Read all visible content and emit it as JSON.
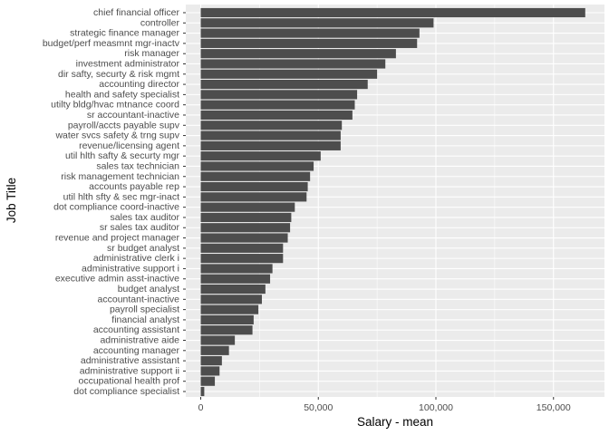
{
  "chart_data": {
    "type": "bar",
    "orientation": "horizontal",
    "xlabel": "Salary - mean",
    "ylabel": "Job Title",
    "xlim": [
      0,
      170000
    ],
    "x_ticks": [
      0,
      50000,
      100000,
      150000
    ],
    "x_tick_labels": [
      "0",
      "50,000",
      "100,000",
      "150,000"
    ],
    "grid": true,
    "colors": {
      "panel": "#ebebeb",
      "grid": "#ffffff",
      "bar": "#4d4d4d",
      "tick_text": "#4d4d4d"
    },
    "categories": [
      "chief financial officer",
      "controller",
      "strategic finance manager",
      "budget/perf measmnt mgr-inactv",
      "risk manager",
      "investment administrator",
      "dir safty, securty & risk mgmt",
      "accounting director",
      "health and safety specialist",
      "utilty bldg/hvac mtnance coord",
      "sr accountant-inactive",
      "payroll/accts payable supv",
      "water svcs safety & trng supv",
      "revenue/licensing agent",
      "util hlth safty & securty mgr",
      "sales tax technician",
      "risk management technician",
      "accounts payable rep",
      "util hlth sfty & sec mgr-inact",
      "dot compliance coord-inactive",
      "sales tax auditor",
      "sr sales tax auditor",
      "revenue and project manager",
      "sr budget analyst",
      "administrative clerk i",
      "administrative support i",
      "executive admin asst-inactive",
      "budget analyst",
      "accountant-inactive",
      "payroll specialist",
      "financial analyst",
      "accounting assistant",
      "administrative aide",
      "accounting manager",
      "administrative assistant",
      "administrative support ii",
      "occupational health prof",
      "dot compliance specialist"
    ],
    "values": [
      163500,
      99000,
      93000,
      92000,
      83000,
      78500,
      75000,
      71000,
      66500,
      65500,
      64500,
      60000,
      59500,
      59500,
      51000,
      48000,
      46500,
      45500,
      45000,
      40000,
      38500,
      38000,
      37000,
      35000,
      35000,
      30500,
      29500,
      27500,
      26000,
      24500,
      22500,
      22000,
      14500,
      12000,
      9000,
      8000,
      6000,
      1500
    ]
  }
}
